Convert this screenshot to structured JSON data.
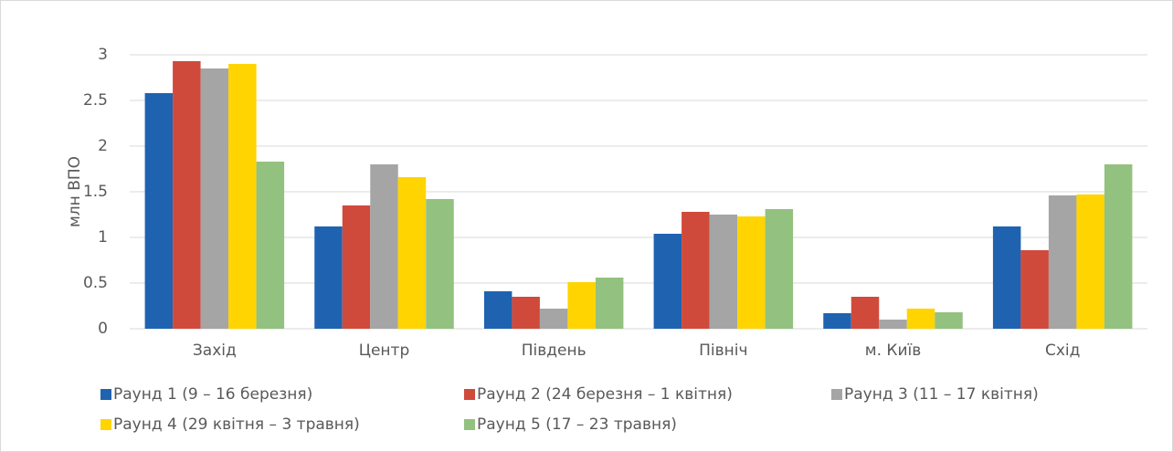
{
  "chart_data": {
    "type": "bar",
    "y_label": "млн ВПО",
    "categories": [
      "Захід",
      "Центр",
      "Південь",
      "Північ",
      "м. Київ",
      "Схід"
    ],
    "series": [
      {
        "name": "Раунд 1 (9 – 16 березня)",
        "color": "#1f63b0",
        "values": [
          2.58,
          1.12,
          0.41,
          1.04,
          0.17,
          1.12
        ]
      },
      {
        "name": "Раунд 2 (24 березня – 1 квітня)",
        "color": "#d04a3c",
        "values": [
          2.93,
          1.35,
          0.35,
          1.28,
          0.35,
          0.86
        ]
      },
      {
        "name": "Раунд 3 (11 – 17 квітня)",
        "color": "#a5a5a5",
        "values": [
          2.85,
          1.8,
          0.22,
          1.25,
          0.1,
          1.46
        ]
      },
      {
        "name": "Раунд 4 (29 квітня – 3 травня)",
        "color": "#ffd400",
        "values": [
          2.9,
          1.66,
          0.51,
          1.23,
          0.22,
          1.47
        ]
      },
      {
        "name": "Раунд 5 (17 – 23 травня)",
        "color": "#93c17f",
        "values": [
          1.83,
          1.42,
          0.56,
          1.31,
          0.18,
          1.8
        ]
      }
    ],
    "ylim": [
      0,
      3
    ],
    "yticks": [
      0,
      0.5,
      1,
      1.5,
      2,
      2.5,
      3
    ],
    "grid": true,
    "legend": "bottom"
  }
}
